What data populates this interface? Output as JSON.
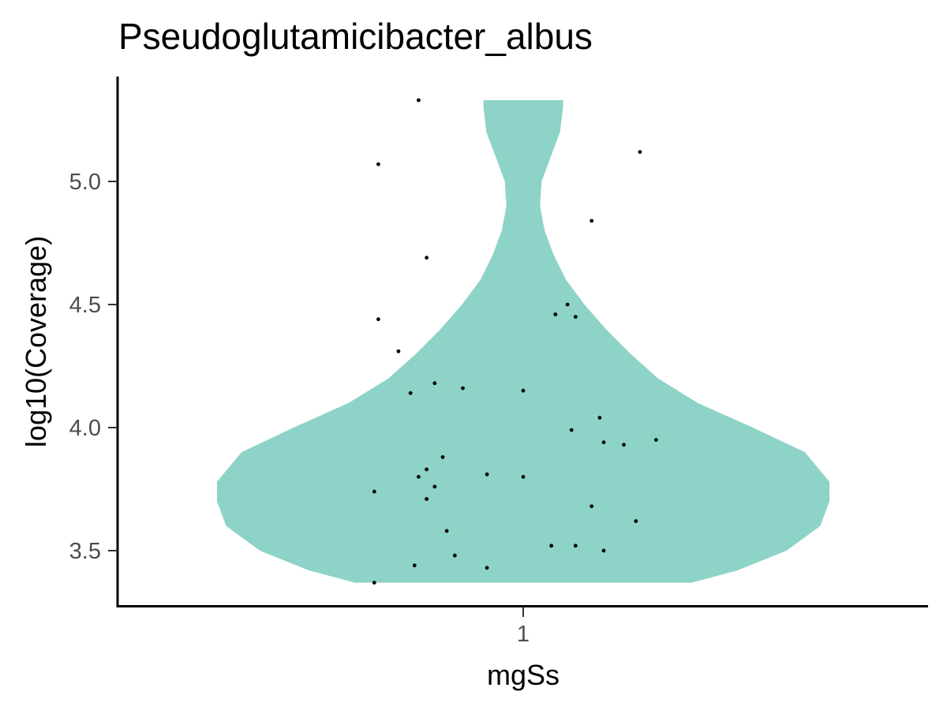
{
  "chart_data": {
    "type": "violin",
    "title": "Pseudoglutamicibacter_albus",
    "xlabel": "mgSs",
    "ylabel": "log10(Coverage)",
    "categories": [
      "1"
    ],
    "ylim": [
      3.3,
      5.33
    ],
    "yticks": [
      "3.5",
      "4.0",
      "4.5",
      "5.0"
    ],
    "grid": false,
    "legend": "none",
    "fill_color": "#8ED3C7",
    "point_color": "#000000",
    "violin": {
      "ymin": 3.37,
      "ymax": 5.33,
      "density_profile": [
        [
          3.37,
          0.55
        ],
        [
          3.42,
          0.7
        ],
        [
          3.5,
          0.86
        ],
        [
          3.6,
          0.97
        ],
        [
          3.7,
          1.0
        ],
        [
          3.78,
          1.0
        ],
        [
          3.9,
          0.92
        ],
        [
          4.0,
          0.75
        ],
        [
          4.1,
          0.57
        ],
        [
          4.2,
          0.44
        ],
        [
          4.3,
          0.35
        ],
        [
          4.4,
          0.27
        ],
        [
          4.5,
          0.2
        ],
        [
          4.6,
          0.14
        ],
        [
          4.7,
          0.1
        ],
        [
          4.8,
          0.07
        ],
        [
          4.9,
          0.055
        ],
        [
          5.0,
          0.06
        ],
        [
          5.1,
          0.09
        ],
        [
          5.2,
          0.12
        ],
        [
          5.3,
          0.13
        ],
        [
          5.33,
          0.13
        ]
      ]
    },
    "points": [
      {
        "x": 0.74,
        "y": 5.33
      },
      {
        "x": 0.64,
        "y": 5.07
      },
      {
        "x": 1.29,
        "y": 5.12
      },
      {
        "x": 1.17,
        "y": 4.84
      },
      {
        "x": 0.76,
        "y": 4.69
      },
      {
        "x": 1.11,
        "y": 4.5
      },
      {
        "x": 0.64,
        "y": 4.44
      },
      {
        "x": 1.08,
        "y": 4.46
      },
      {
        "x": 1.13,
        "y": 4.45
      },
      {
        "x": 0.69,
        "y": 4.31
      },
      {
        "x": 0.78,
        "y": 4.18
      },
      {
        "x": 0.85,
        "y": 4.16
      },
      {
        "x": 0.72,
        "y": 4.14
      },
      {
        "x": 1.0,
        "y": 4.15
      },
      {
        "x": 1.19,
        "y": 4.04
      },
      {
        "x": 1.12,
        "y": 3.99
      },
      {
        "x": 1.2,
        "y": 3.94
      },
      {
        "x": 1.25,
        "y": 3.93
      },
      {
        "x": 1.33,
        "y": 3.95
      },
      {
        "x": 0.8,
        "y": 3.88
      },
      {
        "x": 0.76,
        "y": 3.83
      },
      {
        "x": 0.74,
        "y": 3.8
      },
      {
        "x": 0.91,
        "y": 3.81
      },
      {
        "x": 1.0,
        "y": 3.8
      },
      {
        "x": 0.78,
        "y": 3.76
      },
      {
        "x": 0.63,
        "y": 3.74
      },
      {
        "x": 0.76,
        "y": 3.71
      },
      {
        "x": 1.17,
        "y": 3.68
      },
      {
        "x": 1.28,
        "y": 3.62
      },
      {
        "x": 0.81,
        "y": 3.58
      },
      {
        "x": 1.07,
        "y": 3.52
      },
      {
        "x": 1.13,
        "y": 3.52
      },
      {
        "x": 1.2,
        "y": 3.5
      },
      {
        "x": 0.83,
        "y": 3.48
      },
      {
        "x": 0.73,
        "y": 3.44
      },
      {
        "x": 0.91,
        "y": 3.43
      },
      {
        "x": 0.63,
        "y": 3.37
      }
    ]
  }
}
